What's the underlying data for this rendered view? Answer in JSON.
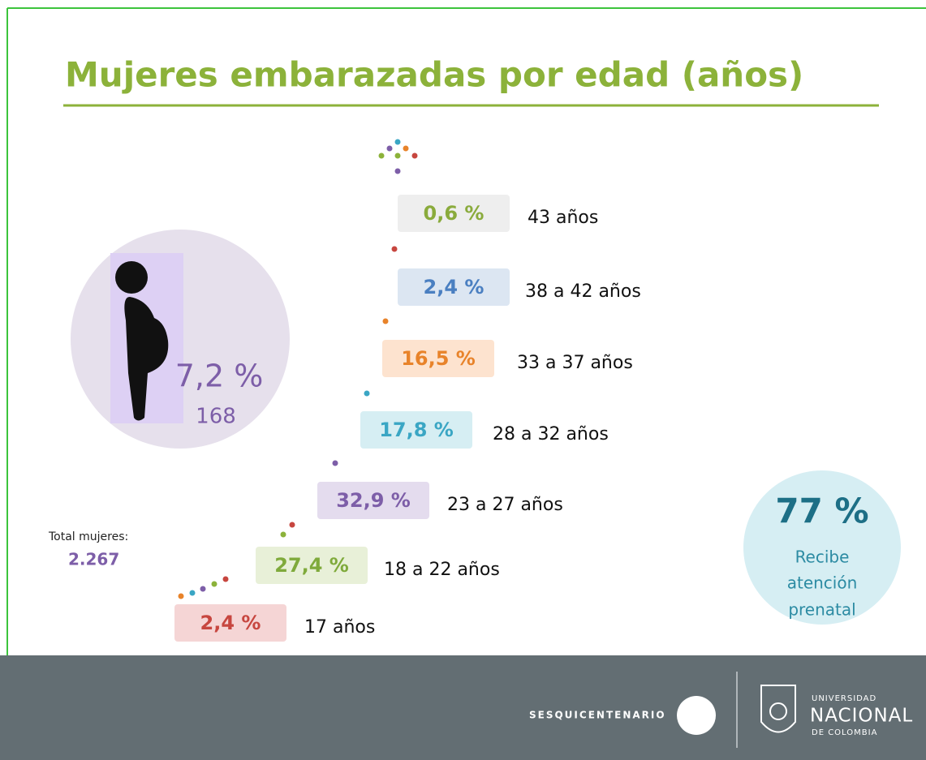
{
  "header": {
    "title": "Mujeres embarazadas por edad (años)"
  },
  "highlight": {
    "value": "7,2 %",
    "count": "168"
  },
  "total": {
    "label": "Total mujeres:",
    "value": "2.267"
  },
  "groups": [
    {
      "value": "0,6 %",
      "label": "43 años"
    },
    {
      "value": "2,4 %",
      "label": "38 a 42 años"
    },
    {
      "value": "16,5 %",
      "label": "33 a 37 años"
    },
    {
      "value": "17,8 %",
      "label": "28 a 32 años"
    },
    {
      "value": "32,9 %",
      "label": "23 a 27 años"
    },
    {
      "value": "27,4 %",
      "label": "18 a 22 años"
    },
    {
      "value": "2,4 %",
      "label": "17 años"
    }
  ],
  "prenatal": {
    "value": "77 %",
    "lines": [
      "Recibe",
      "atención",
      "prenatal"
    ]
  },
  "footer": {
    "sesqui": "SESQUICENTENARIO",
    "uni1": "UNIVERSIDAD",
    "uni2": "NACIONAL",
    "uni3": "DE COLOMBIA"
  }
}
